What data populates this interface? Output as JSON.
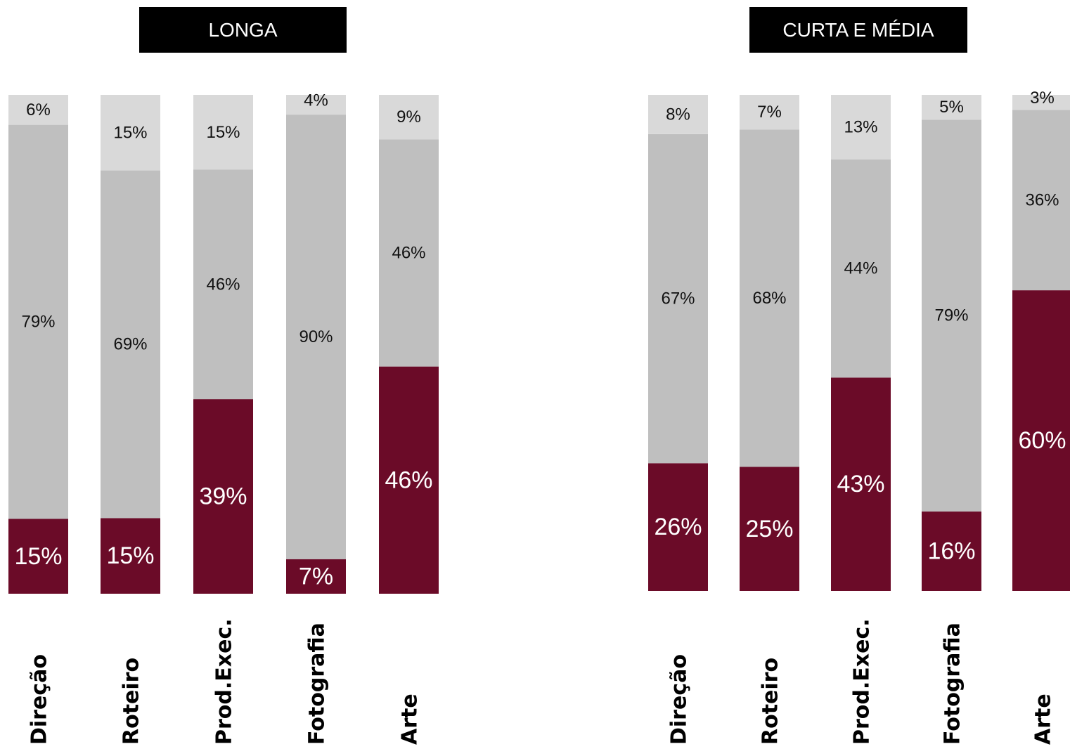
{
  "colors": {
    "bottom": "#6b0b28",
    "middle": "#bfbfbf",
    "top": "#d9d9d9"
  },
  "chart_data": [
    {
      "type": "bar",
      "stacked": true,
      "title": "LONGA",
      "categories": [
        "Direção",
        "Roteiro",
        "Prod.Exec.",
        "Fotografia",
        "Arte"
      ],
      "series": [
        {
          "values": [
            15,
            15,
            39,
            7,
            46
          ],
          "labels": [
            "15%",
            "15%",
            "39%",
            "7%",
            "46%"
          ]
        },
        {
          "values": [
            79,
            69,
            46,
            90,
            46
          ],
          "labels": [
            "79%",
            "69%",
            "46%",
            "90%",
            "46%"
          ]
        },
        {
          "values": [
            6,
            15,
            15,
            4,
            9
          ],
          "labels": [
            "6%",
            "15%",
            "15%",
            "4%",
            "9%"
          ]
        }
      ],
      "ylim": [
        0,
        100
      ]
    },
    {
      "type": "bar",
      "stacked": true,
      "title": "CURTA E MÉDIA",
      "categories": [
        "Direção",
        "Roteiro",
        "Prod.Exec.",
        "Fotografia",
        "Arte"
      ],
      "series": [
        {
          "values": [
            26,
            25,
            43,
            16,
            60
          ],
          "labels": [
            "26%",
            "25%",
            "43%",
            "16%",
            "60%"
          ]
        },
        {
          "values": [
            67,
            68,
            44,
            79,
            36
          ],
          "labels": [
            "67%",
            "68%",
            "44%",
            "79%",
            "36%"
          ]
        },
        {
          "values": [
            8,
            7,
            13,
            5,
            3
          ],
          "labels": [
            "8%",
            "7%",
            "13%",
            "5%",
            "3%"
          ]
        }
      ],
      "ylim": [
        0,
        100
      ]
    }
  ]
}
